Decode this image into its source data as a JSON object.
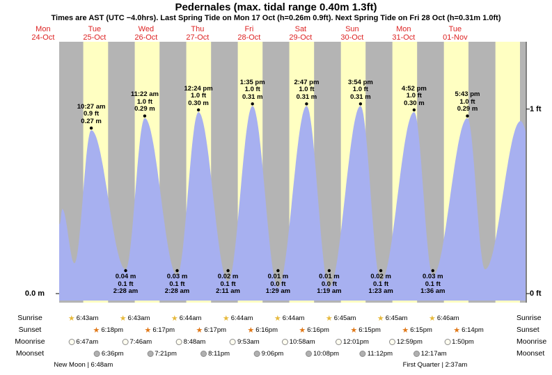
{
  "header": {
    "title": "Pedernales (max. tidal range 0.40m 1.3ft)",
    "subtitle": "Times are AST (UTC −4.0hrs). Last Spring Tide on Mon 17 Oct (h=0.26m 0.9ft). Next Spring Tide on Fri 28 Oct (h=0.31m 1.0ft)"
  },
  "axes": {
    "left_meters_label": "0.0 m",
    "right_one_ft_label": "1 ft",
    "right_zero_ft_label": "0 ft"
  },
  "colors": {
    "day_band": "#ffffc2",
    "night_band": "#b4b4b4",
    "tide_fill": "#a7b0f0",
    "day_label_red": "#dd2222",
    "sunrise_star": "#e6b93c",
    "sunset_star": "#e07818",
    "moonrise_circle": "#fffdf0",
    "moonset_circle": "#b0b0b0",
    "axis_line": "#000000"
  },
  "chart_data": {
    "type": "area",
    "title": "Tide height for Pedernales, Mon 24-Oct to Tue 01-Nov",
    "x_unit": "hours from Mon 24-Oct 00:00 AST",
    "y_unit": "m",
    "y_range": [
      0,
      0.42
    ],
    "max_tidal_range_m": 0.4,
    "max_tidal_range_ft": 1.3,
    "days": [
      {
        "dow": "Mon",
        "date": "24-Oct",
        "noon_t": 12
      },
      {
        "dow": "Tue",
        "date": "25-Oct",
        "noon_t": 36
      },
      {
        "dow": "Wed",
        "date": "26-Oct",
        "noon_t": 60
      },
      {
        "dow": "Thu",
        "date": "27-Oct",
        "noon_t": 84
      },
      {
        "dow": "Fri",
        "date": "28-Oct",
        "noon_t": 108
      },
      {
        "dow": "Sat",
        "date": "29-Oct",
        "noon_t": 132
      },
      {
        "dow": "Sun",
        "date": "30-Oct",
        "noon_t": 156
      },
      {
        "dow": "Mon",
        "date": "31-Oct",
        "noon_t": 180
      },
      {
        "dow": "Tue",
        "date": "01-Nov",
        "noon_t": 204
      }
    ],
    "high_tides": [
      {
        "t": 34.45,
        "height_m": 0.27,
        "time": "10:27 am",
        "ft": "0.9 ft",
        "m": "0.27 m"
      },
      {
        "t": 59.37,
        "height_m": 0.29,
        "time": "11:22 am",
        "ft": "1.0 ft",
        "m": "0.29 m"
      },
      {
        "t": 84.4,
        "height_m": 0.3,
        "time": "12:24 pm",
        "ft": "1.0 ft",
        "m": "0.30 m"
      },
      {
        "t": 109.58,
        "height_m": 0.31,
        "time": "1:35 pm",
        "ft": "1.0 ft",
        "m": "0.31 m"
      },
      {
        "t": 134.78,
        "height_m": 0.31,
        "time": "2:47 pm",
        "ft": "1.0 ft",
        "m": "0.31 m"
      },
      {
        "t": 159.9,
        "height_m": 0.31,
        "time": "3:54 pm",
        "ft": "1.0 ft",
        "m": "0.31 m"
      },
      {
        "t": 184.87,
        "height_m": 0.3,
        "time": "4:52 pm",
        "ft": "1.0 ft",
        "m": "0.30 m"
      },
      {
        "t": 209.72,
        "height_m": 0.29,
        "time": "5:43 pm",
        "ft": "1.0 ft",
        "m": "0.29 m"
      }
    ],
    "low_tides": [
      {
        "t": 50.47,
        "height_m": 0.04,
        "time": "2:28 am",
        "ft": "0.1 ft",
        "m": "0.04 m"
      },
      {
        "t": 74.47,
        "height_m": 0.03,
        "time": "2:28 am",
        "ft": "0.1 ft",
        "m": "0.03 m"
      },
      {
        "t": 98.18,
        "height_m": 0.02,
        "time": "2:11 am",
        "ft": "0.1 ft",
        "m": "0.02 m"
      },
      {
        "t": 121.48,
        "height_m": 0.01,
        "time": "1:29 am",
        "ft": "0.0 ft",
        "m": "0.01 m"
      },
      {
        "t": 145.32,
        "height_m": 0.01,
        "time": "1:19 am",
        "ft": "0.0 ft",
        "m": "0.01 m"
      },
      {
        "t": 169.38,
        "height_m": 0.02,
        "time": "1:23 am",
        "ft": "0.1 ft",
        "m": "0.02 m"
      },
      {
        "t": 193.6,
        "height_m": 0.03,
        "time": "1:36 am",
        "ft": "0.1 ft",
        "m": "0.03 m"
      }
    ],
    "curve_anchors": [
      {
        "t": 9.6,
        "h": 0.26
      },
      {
        "t": 19.8,
        "h": 0.115
      },
      {
        "t": 20.9,
        "h": 0.14
      },
      {
        "t": 26.6,
        "h": 0.05
      },
      {
        "t": 34.45,
        "h": 0.27
      },
      {
        "t": 50.47,
        "h": 0.04
      },
      {
        "t": 59.37,
        "h": 0.29
      },
      {
        "t": 74.47,
        "h": 0.03
      },
      {
        "t": 84.4,
        "h": 0.3
      },
      {
        "t": 98.18,
        "h": 0.02
      },
      {
        "t": 109.58,
        "h": 0.31
      },
      {
        "t": 121.48,
        "h": 0.01
      },
      {
        "t": 134.78,
        "h": 0.31
      },
      {
        "t": 145.32,
        "h": 0.01
      },
      {
        "t": 159.9,
        "h": 0.31
      },
      {
        "t": 169.38,
        "h": 0.02
      },
      {
        "t": 184.87,
        "h": 0.3
      },
      {
        "t": 193.6,
        "h": 0.03
      },
      {
        "t": 209.72,
        "h": 0.29
      },
      {
        "t": 217.9,
        "h": 0.04
      },
      {
        "t": 234.5,
        "h": 0.285
      },
      {
        "t": 240.0,
        "h": 0.24
      }
    ],
    "daylight_bands": [
      [
        30.72,
        42.3
      ],
      [
        54.72,
        66.28
      ],
      [
        78.73,
        90.28
      ],
      [
        102.73,
        114.27
      ],
      [
        126.73,
        138.27
      ],
      [
        150.75,
        162.25
      ],
      [
        174.75,
        186.25
      ],
      [
        198.77,
        210.23
      ],
      [
        222.77,
        234.23
      ]
    ]
  },
  "almanac": {
    "row_labels": [
      "Sunrise",
      "Sunset",
      "Moonrise",
      "Moonset"
    ],
    "sunrise": [
      {
        "t": 30.72,
        "time": "6:43am"
      },
      {
        "t": 54.72,
        "time": "6:43am"
      },
      {
        "t": 78.73,
        "time": "6:44am"
      },
      {
        "t": 102.73,
        "time": "6:44am"
      },
      {
        "t": 126.73,
        "time": "6:44am"
      },
      {
        "t": 150.75,
        "time": "6:45am"
      },
      {
        "t": 174.75,
        "time": "6:45am"
      },
      {
        "t": 198.77,
        "time": "6:46am"
      }
    ],
    "sunset": [
      {
        "t": 42.3,
        "time": "6:18pm"
      },
      {
        "t": 66.28,
        "time": "6:17pm"
      },
      {
        "t": 90.28,
        "time": "6:17pm"
      },
      {
        "t": 114.27,
        "time": "6:16pm"
      },
      {
        "t": 138.27,
        "time": "6:16pm"
      },
      {
        "t": 162.25,
        "time": "6:15pm"
      },
      {
        "t": 186.25,
        "time": "6:15pm"
      },
      {
        "t": 210.23,
        "time": "6:14pm"
      }
    ],
    "moonrise": [
      {
        "t": 30.78,
        "time": "6:47am"
      },
      {
        "t": 55.77,
        "time": "7:46am"
      },
      {
        "t": 80.8,
        "time": "8:48am"
      },
      {
        "t": 105.88,
        "time": "9:53am"
      },
      {
        "t": 130.97,
        "time": "10:58am"
      },
      {
        "t": 156.02,
        "time": "12:01pm"
      },
      {
        "t": 180.98,
        "time": "12:59pm"
      },
      {
        "t": 205.83,
        "time": "1:50pm"
      }
    ],
    "moonset": [
      {
        "t": 42.6,
        "time": "6:36pm"
      },
      {
        "t": 67.35,
        "time": "7:21pm"
      },
      {
        "t": 92.18,
        "time": "8:11pm"
      },
      {
        "t": 117.1,
        "time": "9:06pm"
      },
      {
        "t": 142.13,
        "time": "10:08pm"
      },
      {
        "t": 167.2,
        "time": "11:12pm"
      },
      {
        "t": 192.28,
        "time": "12:17am"
      }
    ],
    "phases": [
      {
        "t": 30.8,
        "label": "New Moon | 6:48am"
      },
      {
        "t": 194.62,
        "label": "First Quarter | 2:37am"
      }
    ]
  }
}
